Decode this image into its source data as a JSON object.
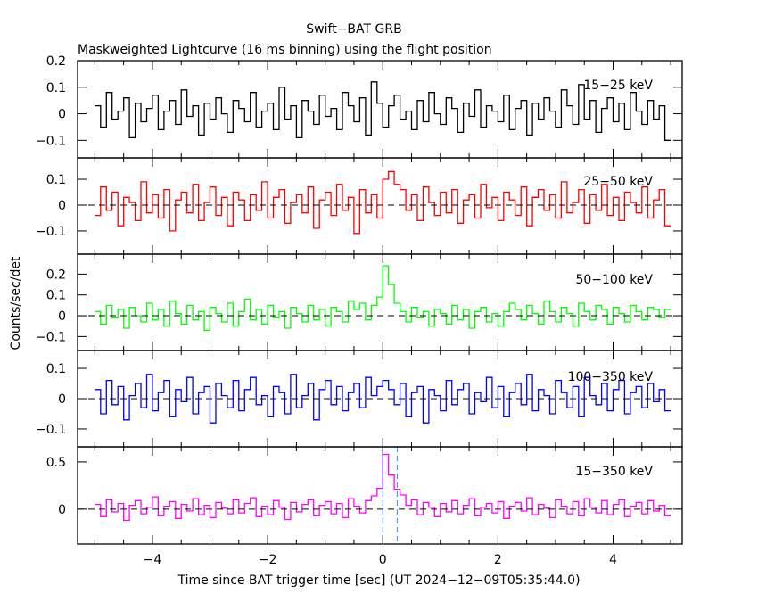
{
  "chart_data": {
    "type": "line",
    "title": "Swift−BAT GRB",
    "subtitle": "Maskweighted Lightcurve (16 ms binning) using the flight position",
    "xlabel": "Time since BAT trigger time [sec] (UT 2024−12−09T05:35:44.0)",
    "ylabel": "Counts/sec/det",
    "xlim": [
      -5.3,
      5.2
    ],
    "x_ticks": [
      -4,
      -2,
      0,
      2,
      4
    ],
    "x_tick_labels": [
      "−4",
      "−2",
      "0",
      "2",
      "4"
    ],
    "x_start": -5.0,
    "x_step": 0.1,
    "markers_x": [
      0,
      0.25
    ],
    "marker_color": "#1e90ff",
    "panels": [
      {
        "name": "15−25 keV",
        "color": "#000000",
        "ylim": [
          -0.166,
          0.2
        ],
        "y_ticks": [
          0.2,
          0.1,
          0,
          -0.1
        ],
        "y_tick_labels": [
          "0.2",
          "0.1",
          "0",
          "−0.1"
        ],
        "zero_line": false,
        "values": [
          0.03,
          -0.05,
          0.08,
          -0.02,
          0.01,
          0.06,
          -0.09,
          0.04,
          -0.03,
          0.02,
          0.07,
          -0.06,
          0.01,
          0.05,
          -0.04,
          0.09,
          -0.01,
          0.03,
          -0.08,
          0.04,
          -0.02,
          0.06,
          0.0,
          -0.07,
          0.05,
          0.02,
          -0.03,
          0.08,
          -0.05,
          0.01,
          0.04,
          -0.06,
          0.1,
          -0.02,
          0.03,
          -0.09,
          0.05,
          0.01,
          -0.04,
          0.07,
          -0.01,
          0.02,
          -0.06,
          0.08,
          0.03,
          -0.03,
          0.06,
          -0.08,
          0.12,
          0.04,
          -0.05,
          0.03,
          0.07,
          -0.02,
          0.01,
          -0.06,
          0.05,
          -0.03,
          0.08,
          0.0,
          -0.04,
          0.06,
          0.02,
          -0.07,
          0.04,
          -0.01,
          0.09,
          -0.05,
          0.03,
          0.01,
          -0.03,
          0.07,
          -0.06,
          0.02,
          0.05,
          -0.08,
          0.04,
          -0.02,
          0.06,
          0.01,
          -0.05,
          0.09,
          0.03,
          -0.04,
          0.11,
          -0.02,
          0.05,
          -0.07,
          0.02,
          0.06,
          -0.03,
          0.04,
          -0.06,
          0.08,
          0.01,
          -0.04,
          0.05,
          -0.02,
          0.03,
          -0.1
        ]
      },
      {
        "name": "25−50 keV",
        "color": "#ff0000",
        "ylim": [
          -0.19,
          0.183
        ],
        "y_ticks": [
          0.1,
          0,
          -0.1
        ],
        "y_tick_labels": [
          "0.1",
          "0",
          "−0.1"
        ],
        "zero_line": true,
        "values": [
          -0.04,
          0.07,
          -0.02,
          0.05,
          -0.08,
          0.03,
          0.01,
          -0.06,
          0.09,
          -0.03,
          0.04,
          -0.05,
          0.06,
          -0.1,
          0.02,
          0.05,
          -0.03,
          0.08,
          -0.06,
          0.01,
          0.07,
          -0.04,
          0.03,
          -0.08,
          0.05,
          0.02,
          -0.06,
          0.04,
          -0.02,
          0.09,
          -0.05,
          0.03,
          0.06,
          -0.07,
          0.01,
          0.04,
          -0.03,
          0.07,
          -0.09,
          0.02,
          0.05,
          -0.04,
          0.08,
          -0.02,
          0.03,
          -0.11,
          0.06,
          -0.03,
          0.04,
          -0.05,
          0.1,
          0.13,
          0.08,
          0.06,
          -0.02,
          0.04,
          -0.06,
          0.07,
          0.01,
          -0.04,
          0.05,
          -0.03,
          0.06,
          -0.07,
          0.02,
          0.04,
          -0.05,
          0.08,
          -0.01,
          0.03,
          -0.06,
          0.05,
          0.02,
          -0.04,
          0.07,
          -0.08,
          0.03,
          0.06,
          -0.02,
          0.04,
          -0.05,
          0.09,
          -0.03,
          0.01,
          0.06,
          -0.07,
          0.04,
          -0.02,
          0.08,
          -0.04,
          0.03,
          -0.06,
          0.05,
          0.01,
          -0.03,
          0.07,
          -0.05,
          0.02,
          0.06,
          -0.08
        ]
      },
      {
        "name": "50−100 keV",
        "color": "#00ff00",
        "ylim": [
          -0.167,
          0.296
        ],
        "y_ticks": [
          0.2,
          0.1,
          0,
          -0.1
        ],
        "y_tick_labels": [
          "0.2",
          "0.1",
          "0",
          "−0.1"
        ],
        "zero_line": true,
        "values": [
          0.02,
          -0.04,
          0.05,
          -0.01,
          0.03,
          -0.06,
          0.04,
          0.0,
          -0.03,
          0.06,
          -0.02,
          0.03,
          -0.05,
          0.07,
          0.01,
          -0.04,
          0.05,
          -0.02,
          0.02,
          -0.07,
          0.04,
          0.01,
          -0.03,
          0.06,
          -0.05,
          0.02,
          0.08,
          -0.02,
          0.03,
          -0.04,
          0.05,
          -0.01,
          0.02,
          -0.06,
          0.04,
          0.01,
          -0.03,
          0.05,
          -0.02,
          0.03,
          -0.05,
          0.04,
          0.02,
          -0.03,
          0.07,
          0.03,
          0.06,
          -0.02,
          0.05,
          0.09,
          0.24,
          0.15,
          0.06,
          0.02,
          -0.03,
          0.04,
          -0.01,
          0.02,
          -0.05,
          0.03,
          0.01,
          -0.04,
          0.05,
          -0.02,
          0.03,
          -0.06,
          0.02,
          0.04,
          -0.03,
          0.01,
          -0.05,
          0.02,
          0.06,
          0.03,
          -0.02,
          0.05,
          0.01,
          -0.04,
          0.07,
          0.02,
          -0.03,
          0.04,
          0.01,
          -0.05,
          0.06,
          0.02,
          -0.02,
          0.05,
          0.03,
          -0.04,
          0.04,
          0.01,
          -0.03,
          0.05,
          0.02,
          -0.02,
          0.04,
          0.03,
          -0.01,
          0.03
        ]
      },
      {
        "name": "100−350 keV",
        "color": "#0000ff",
        "ylim": [
          -0.159,
          0.159
        ],
        "y_ticks": [
          0.1,
          0,
          -0.1
        ],
        "y_tick_labels": [
          "0.1",
          "0",
          "−0.1"
        ],
        "zero_line": true,
        "values": [
          0.03,
          -0.05,
          0.06,
          -0.02,
          0.04,
          -0.07,
          0.01,
          0.05,
          -0.03,
          0.08,
          -0.04,
          0.02,
          0.06,
          -0.06,
          0.03,
          -0.01,
          0.07,
          -0.05,
          0.02,
          0.04,
          -0.08,
          0.05,
          0.01,
          -0.03,
          0.06,
          -0.04,
          0.03,
          0.07,
          -0.02,
          0.01,
          -0.06,
          0.04,
          0.02,
          -0.05,
          0.08,
          -0.03,
          0.01,
          0.05,
          -0.07,
          0.03,
          0.06,
          -0.02,
          0.04,
          -0.04,
          0.02,
          0.05,
          -0.03,
          0.07,
          0.01,
          0.04,
          0.06,
          0.03,
          -0.02,
          0.05,
          -0.06,
          0.02,
          0.04,
          -0.08,
          0.03,
          0.01,
          -0.04,
          0.06,
          -0.02,
          0.03,
          0.05,
          -0.05,
          0.02,
          -0.01,
          0.07,
          -0.03,
          0.04,
          -0.06,
          0.02,
          0.05,
          -0.02,
          0.08,
          -0.04,
          0.03,
          0.01,
          -0.05,
          0.06,
          0.02,
          -0.03,
          0.04,
          -0.06,
          0.07,
          0.01,
          -0.02,
          0.05,
          -0.04,
          0.03,
          0.06,
          -0.05,
          0.02,
          0.04,
          -0.03,
          0.05,
          -0.01,
          0.03,
          -0.04
        ]
      },
      {
        "name": "15−350 keV",
        "color": "#ff00ff",
        "ylim": [
          -0.37,
          0.66
        ],
        "y_ticks": [
          0.5,
          0
        ],
        "y_tick_labels": [
          "0.5",
          "0"
        ],
        "zero_line": true,
        "markers": true,
        "values": [
          0.05,
          -0.08,
          0.1,
          -0.03,
          0.06,
          -0.12,
          0.04,
          0.09,
          -0.05,
          0.02,
          0.13,
          -0.07,
          0.03,
          0.08,
          -0.1,
          0.05,
          -0.02,
          0.11,
          -0.06,
          0.04,
          -0.09,
          0.07,
          0.01,
          -0.05,
          0.1,
          -0.04,
          0.06,
          0.12,
          -0.08,
          0.03,
          -0.06,
          0.09,
          0.02,
          -0.11,
          0.07,
          -0.03,
          0.05,
          0.1,
          -0.07,
          0.04,
          0.08,
          -0.05,
          0.06,
          -0.09,
          0.11,
          0.03,
          -0.04,
          0.09,
          0.14,
          0.22,
          0.58,
          0.36,
          0.21,
          0.15,
          0.04,
          0.1,
          -0.06,
          0.07,
          0.02,
          -0.08,
          0.06,
          -0.03,
          0.09,
          -0.05,
          0.04,
          0.11,
          -0.07,
          0.02,
          0.06,
          -0.04,
          0.08,
          -0.1,
          0.03,
          0.07,
          -0.02,
          0.12,
          -0.06,
          0.05,
          0.01,
          -0.09,
          0.1,
          0.03,
          -0.05,
          0.08,
          -0.07,
          0.11,
          0.02,
          -0.04,
          0.09,
          -0.06,
          0.05,
          0.1,
          -0.08,
          0.03,
          0.07,
          -0.05,
          0.09,
          -0.02,
          0.04,
          -0.07
        ]
      }
    ]
  }
}
